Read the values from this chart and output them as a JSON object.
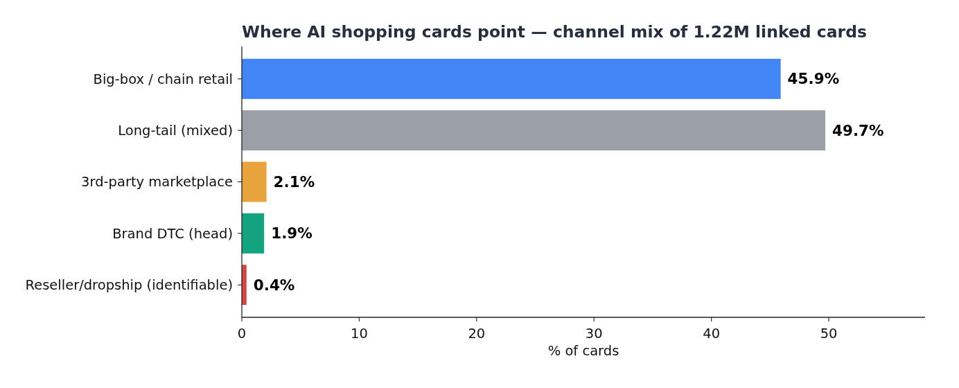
{
  "chart_data": {
    "type": "bar",
    "orientation": "horizontal",
    "title": "Where AI shopping cards point — channel mix of 1.22M linked cards",
    "xlabel": "% of cards",
    "categories": [
      "Big-box / chain retail",
      "Long-tail (mixed)",
      "3rd-party marketplace",
      "Brand DTC (head)",
      "Reseller/dropship (identifiable)"
    ],
    "values": [
      45.9,
      49.7,
      2.1,
      1.9,
      0.4
    ],
    "value_labels": [
      "45.9%",
      "49.7%",
      "2.1%",
      "1.9%",
      "0.4%"
    ],
    "colors": [
      "#4285f4",
      "#9aa0a6",
      "#e8a33d",
      "#13a37f",
      "#d64541"
    ],
    "xlim": [
      0,
      58.2
    ],
    "xticks": [
      0,
      10,
      20,
      30,
      40,
      50
    ],
    "grid": false
  }
}
